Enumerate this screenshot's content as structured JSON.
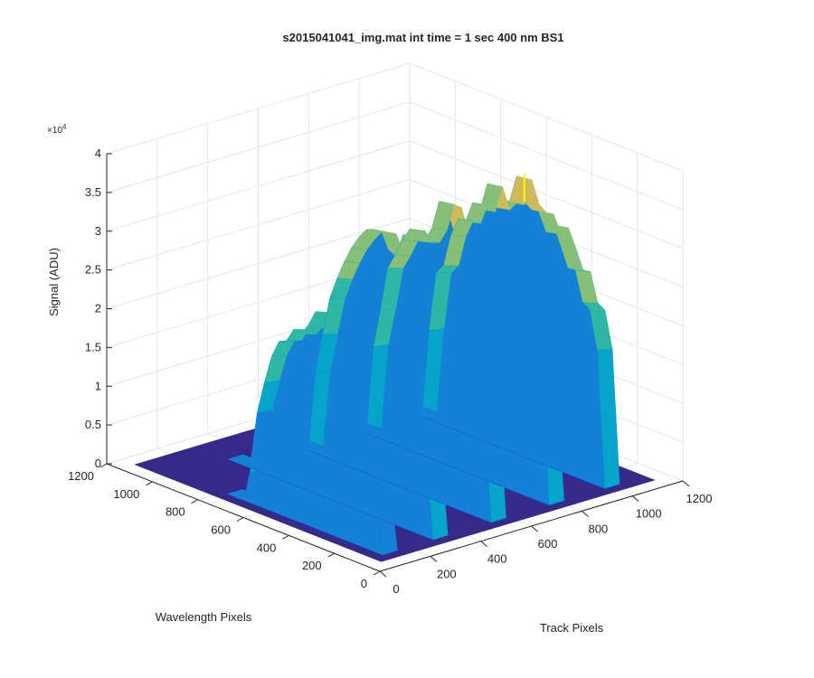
{
  "chart_data": {
    "type": "surface3d",
    "title": "s2015041041_img.mat int time = 1 sec  400 nm BS1",
    "xlabel": "Track Pixels",
    "ylabel": "Wavelength Pixels",
    "zlabel": "Signal (ADU)",
    "xlim": [
      0,
      1200
    ],
    "ylim": [
      0,
      1200
    ],
    "zlim": [
      0,
      40000
    ],
    "x_ticks": [
      "0",
      "200",
      "400",
      "600",
      "800",
      "1000",
      "1200"
    ],
    "y_ticks": [
      "0",
      "200",
      "400",
      "600",
      "800",
      "1000",
      "1200"
    ],
    "z_ticks": [
      "0",
      "0.5",
      "1",
      "1.5",
      "2",
      "2.5",
      "3",
      "3.5",
      "4"
    ],
    "z_exponent_base": "×10",
    "z_exponent_power": "4",
    "grid": true,
    "colormap": [
      "#352a87",
      "#0f5cdd",
      "#1481d6",
      "#06a4ca",
      "#2eb7a4",
      "#87bf77",
      "#d1bb59",
      "#fec832",
      "#f9fb0e"
    ],
    "baseline_color": "#352a87",
    "peaks": [
      {
        "track_start": 100,
        "track_end": 160,
        "wavelength_start": 100,
        "wavelength_end": 780,
        "peak_signal": 13000
      },
      {
        "track_start": 300,
        "track_end": 360,
        "wavelength_start": 100,
        "wavelength_end": 1000,
        "peak_signal": 25000
      },
      {
        "track_start": 530,
        "track_end": 590,
        "wavelength_start": 100,
        "wavelength_end": 1000,
        "peak_signal": 34000
      },
      {
        "track_start": 760,
        "track_end": 820,
        "wavelength_start": 100,
        "wavelength_end": 1000,
        "peak_signal": 35000
      },
      {
        "track_start": 980,
        "track_end": 1040,
        "wavelength_start": 100,
        "wavelength_end": 1000,
        "peak_signal": 37000
      }
    ]
  }
}
